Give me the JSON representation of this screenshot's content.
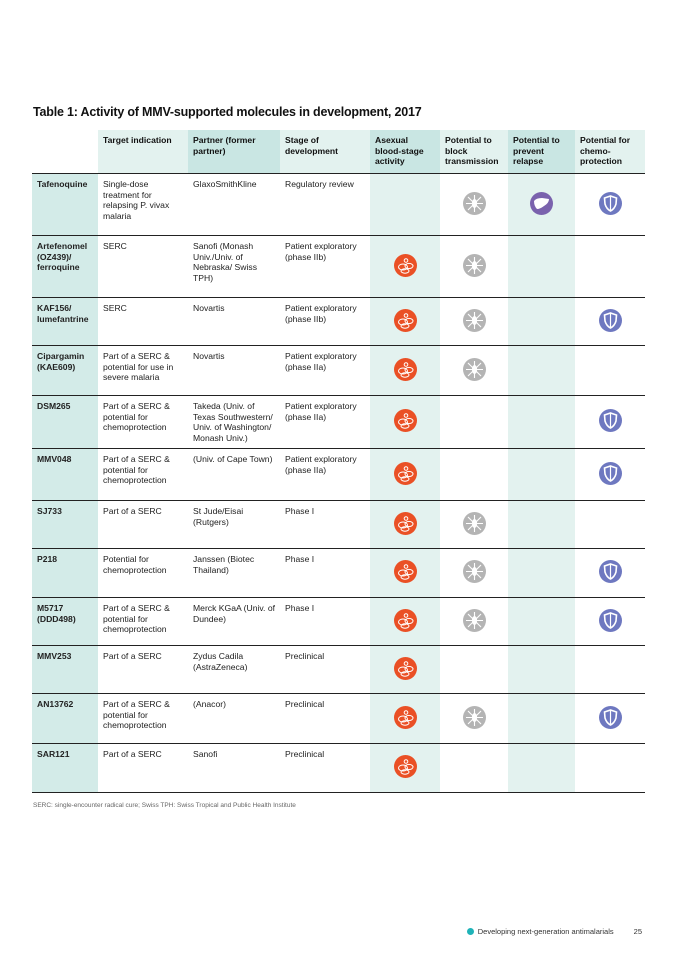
{
  "title": "Table 1: Activity of MMV-supported molecules in development, 2017",
  "headers": [
    "",
    "Target indication",
    "Partner (former partner)",
    "Stage of development",
    "Asexual blood-stage activity",
    "Potential to block transmission",
    "Potential to prevent relapse",
    "Potential for chemo-protection"
  ],
  "rows": [
    {
      "name": "Tafenoquine",
      "target": "Single-dose treatment for relapsing P. vivax malaria",
      "partner": "GlaxoSmithKline",
      "stage": "Regulatory review",
      "asexual": false,
      "transmission": true,
      "relapse": true,
      "chemo": true
    },
    {
      "name": "Artefenomel (OZ439)/ ferroquine",
      "target": "SERC",
      "partner": "Sanofi (Monash Univ./Univ. of Nebraska/ Swiss TPH)",
      "stage": "Patient exploratory (phase IIb)",
      "asexual": true,
      "transmission": true,
      "relapse": false,
      "chemo": false
    },
    {
      "name": "KAF156/ lumefantrine",
      "target": "SERC",
      "partner": "Novartis",
      "stage": "Patient exploratory (phase IIb)",
      "asexual": true,
      "transmission": true,
      "relapse": false,
      "chemo": true
    },
    {
      "name": "Cipargamin (KAE609)",
      "target": "Part of a SERC & potential for use in severe malaria",
      "partner": "Novartis",
      "stage": "Patient exploratory (phase IIa)",
      "asexual": true,
      "transmission": true,
      "relapse": false,
      "chemo": false
    },
    {
      "name": "DSM265",
      "target": "Part of a SERC & potential for chemoprotection",
      "partner": "Takeda (Univ. of Texas Southwestern/ Univ. of Washington/ Monash Univ.)",
      "stage": "Patient exploratory (phase IIa)",
      "asexual": true,
      "transmission": false,
      "relapse": false,
      "chemo": true
    },
    {
      "name": "MMV048",
      "target": "Part of a SERC & potential for chemoprotection",
      "partner": "(Univ. of Cape Town)",
      "stage": "Patient exploratory (phase IIa)",
      "asexual": true,
      "transmission": false,
      "relapse": false,
      "chemo": true
    },
    {
      "name": "SJ733",
      "target": "Part of a SERC",
      "partner": "St Jude/Eisai (Rutgers)",
      "stage": "Phase I",
      "asexual": true,
      "transmission": true,
      "relapse": false,
      "chemo": false
    },
    {
      "name": "P218",
      "target": "Potential for chemoprotection",
      "partner": "Janssen (Biotec Thailand)",
      "stage": "Phase I",
      "asexual": true,
      "transmission": true,
      "relapse": false,
      "chemo": true
    },
    {
      "name": "M5717 (DDD498)",
      "target": "Part of a SERC & potential for chemoprotection",
      "partner": "Merck KGaA (Univ. of Dundee)",
      "stage": "Phase I",
      "asexual": true,
      "transmission": true,
      "relapse": false,
      "chemo": true
    },
    {
      "name": "MMV253",
      "target": "Part of a SERC",
      "partner": "Zydus Cadila (AstraZeneca)",
      "stage": "Preclinical",
      "asexual": true,
      "transmission": false,
      "relapse": false,
      "chemo": false
    },
    {
      "name": "AN13762",
      "target": "Part of a SERC & potential for chemoprotection",
      "partner": "(Anacor)",
      "stage": "Preclinical",
      "asexual": true,
      "transmission": true,
      "relapse": false,
      "chemo": true
    },
    {
      "name": "SAR121",
      "target": "Part of a SERC",
      "partner": "Sanofi",
      "stage": "Preclinical",
      "asexual": true,
      "transmission": false,
      "relapse": false,
      "chemo": false
    }
  ],
  "icons": {
    "asexual": "red-blood-cell-icon",
    "transmission": "mosquito-icon",
    "relapse": "liver-icon",
    "chemo": "shield-icon"
  },
  "colors": {
    "asexual": "#ea5025",
    "transmission": "#b4b4b4",
    "relapse": "#7a62ad",
    "chemo": "#6e78c0",
    "teal": "#c9e6e3"
  },
  "footnote": "SERC: single-encounter radical cure; Swiss TPH: Swiss Tropical and Public Health Institute",
  "footer": {
    "section": "Developing next-generation antimalarials",
    "page": "25"
  }
}
